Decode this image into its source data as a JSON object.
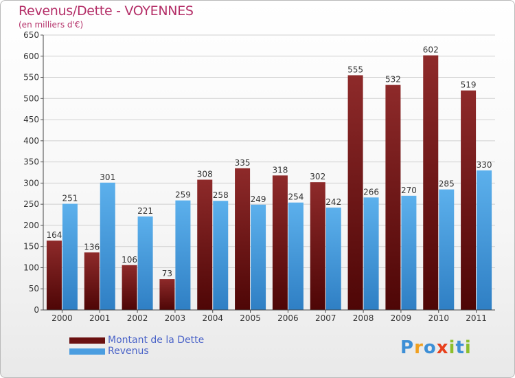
{
  "title": "Revenus/Dette - VOYENNES",
  "subtitle": "(en milliers d'€)",
  "logo": {
    "text": "Proxiti",
    "letters": [
      {
        "ch": "P",
        "color": "#3d8fd6"
      },
      {
        "ch": "r",
        "color": "#f0a020"
      },
      {
        "ch": "o",
        "color": "#3d8fd6"
      },
      {
        "ch": "x",
        "color": "#e8401c"
      },
      {
        "ch": "i",
        "color": "#8cbe2c"
      },
      {
        "ch": "t",
        "color": "#3d8fd6"
      },
      {
        "ch": "i",
        "color": "#8cbe2c"
      }
    ]
  },
  "colors": {
    "dette": "#7a1a1a",
    "revenus": "#4a9de0",
    "title": "#b42f68",
    "legend_text": "#4a63c8"
  },
  "chart_data": {
    "type": "bar",
    "categories": [
      "2000",
      "2001",
      "2002",
      "2003",
      "2004",
      "2005",
      "2006",
      "2007",
      "2008",
      "2009",
      "2010",
      "2011"
    ],
    "series": [
      {
        "name": "Montant de la Dette",
        "values": [
          164,
          136,
          106,
          73,
          308,
          335,
          318,
          302,
          555,
          532,
          602,
          519
        ]
      },
      {
        "name": "Revenus",
        "values": [
          251,
          301,
          221,
          259,
          258,
          249,
          254,
          242,
          266,
          270,
          285,
          330
        ]
      }
    ],
    "ylim": [
      0,
      650
    ],
    "yticks": [
      0,
      50,
      100,
      150,
      200,
      250,
      300,
      350,
      400,
      450,
      500,
      550,
      600,
      650
    ],
    "grid": true,
    "legend_position": "bottom-left"
  }
}
